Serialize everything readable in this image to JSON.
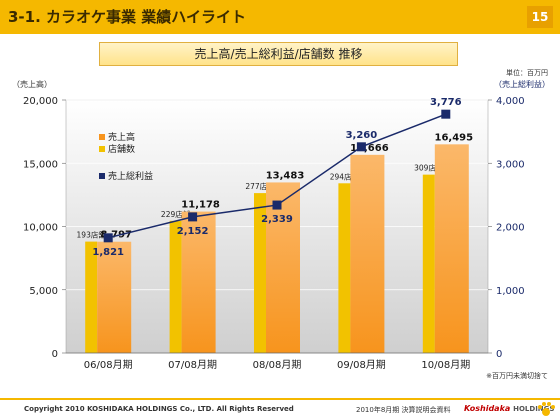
{
  "header": {
    "title": "3-1. カラオケ事業 業績ハイライト",
    "page_number": "15"
  },
  "subtitle": "売上高/売上総利益/店舗数 推移",
  "unit_note": "単位：百万円",
  "y1_unit": "（売上高）",
  "y2_unit": "（売上総利益）",
  "foot_note": "※百万円未満切捨て",
  "footer": {
    "copyright": "Copyright 2010 KOSHIDAKA HOLDINGS Co., LTD. All Rights Reserved",
    "event": "2010年8月期 決算説明会資料",
    "logo_brand": "Koshidaka",
    "logo_suffix": "HOLDINGS"
  },
  "colors": {
    "header": "#f5b800",
    "revenue": "#f7941d",
    "stores": "#f2c200",
    "profit": "#1a2a6a"
  },
  "chart_data": {
    "type": "bar",
    "categories": [
      "06/08月期",
      "07/08月期",
      "08/08月期",
      "09/08月期",
      "10/08月期"
    ],
    "series": [
      {
        "name": "売上高",
        "axis": "left",
        "values": [
          8797,
          11178,
          13483,
          15666,
          16495
        ],
        "labels": [
          "8,797",
          "11,178",
          "13,483",
          "15,666",
          "16,495"
        ]
      },
      {
        "name": "店舗数",
        "axis": "none",
        "values": [
          193,
          229,
          277,
          294,
          309
        ],
        "labels": [
          "193店舗",
          "229店舗",
          "277店舗",
          "294店舗",
          "309店舗"
        ]
      },
      {
        "name": "売上総利益",
        "type": "line",
        "axis": "right",
        "values": [
          1821,
          2152,
          2339,
          3260,
          3776
        ],
        "labels": [
          "1,821",
          "2,152",
          "2,339",
          "3,260",
          "3,776"
        ]
      }
    ],
    "y_left": {
      "range": [
        0,
        20000
      ],
      "ticks": [
        "0",
        "5,000",
        "10,000",
        "15,000",
        "20,000"
      ]
    },
    "y_right": {
      "range": [
        0,
        4000
      ],
      "ticks": [
        "0",
        "1,000",
        "2,000",
        "3,000",
        "4,000"
      ]
    },
    "grid": true,
    "legend_position": "top-left"
  }
}
